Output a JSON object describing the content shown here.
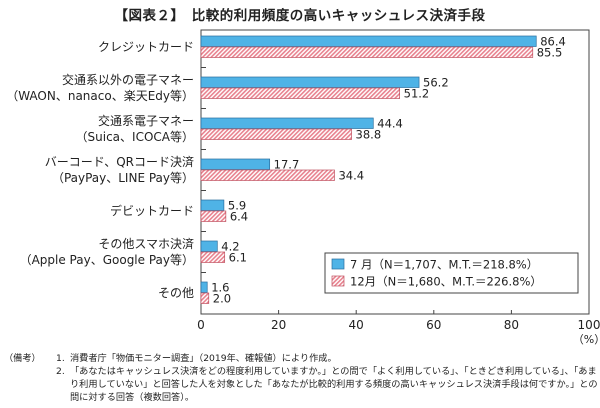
{
  "title": "【図表２】　比較的利用頻度の高いキャッシュレス決済手段",
  "chart_data": {
    "type": "bar",
    "orientation": "horizontal",
    "title": "【図表２】　比較的利用頻度の高いキャッシュレス決済手段",
    "categories": [
      [
        "クレジットカード"
      ],
      [
        "交通系以外の電子マネー",
        "（WAON、nanaco、楽天Edy等）"
      ],
      [
        "交通系電子マネー",
        "（Suica、ICOCA等）"
      ],
      [
        "バーコード、QRコード決済",
        "（PayPay、LINE Pay等）"
      ],
      [
        "デビットカード"
      ],
      [
        "その他スマホ決済",
        "（Apple Pay、Google Pay等）"
      ],
      [
        "その他"
      ]
    ],
    "series": [
      {
        "name": "7 月（N＝1,707、M.T.＝218.8%）",
        "values": [
          86.4,
          56.2,
          44.4,
          17.7,
          5.9,
          4.2,
          1.6
        ],
        "color": "#4fb3e6",
        "pattern": "solid"
      },
      {
        "name": "12月（N＝1,680、M.T.＝226.8%）",
        "values": [
          85.5,
          51.2,
          38.8,
          34.4,
          6.4,
          6.1,
          2.0
        ],
        "color": "#e8828f",
        "pattern": "diagonal-hatch"
      }
    ],
    "data_labels": [
      [
        "86.4",
        "56.2",
        "44.4",
        "17.7",
        "5.9",
        "4.2",
        "1.6"
      ],
      [
        "85.5",
        "51.2",
        "38.8",
        "34.4",
        "6.4",
        "6.1",
        "2.0"
      ]
    ],
    "xlim": [
      0,
      100
    ],
    "xticks": [
      "0",
      "20",
      "40",
      "60",
      "80",
      "100"
    ],
    "xunit": "（%）",
    "legend_position": "bottom-right",
    "grid": false
  },
  "notes": {
    "label": "（備考）",
    "items": [
      {
        "num": "1.",
        "text": "消費者庁「物価モニター調査」（2019年、確報値）により作成。"
      },
      {
        "num": "2.",
        "text": "「あなたはキャッシュレス決済をどの程度利用していますか。」との問で「よく利用している」、「ときどき利用している」、「あまり利用していない」と回答した人を対象とした「あなたが比較的利用する頻度の高いキャッシュレス決済手段は何ですか。」との問に対する回答（複数回答）。"
      }
    ]
  }
}
